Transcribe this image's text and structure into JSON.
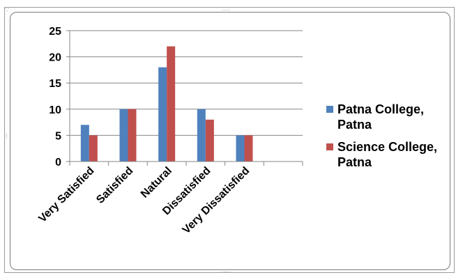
{
  "title": "",
  "chart_data": {
    "type": "bar",
    "title": "",
    "xlabel": "",
    "ylabel": "",
    "categories": [
      "Very Satisfied",
      "Satisfied",
      "Natural",
      "Dissatisfied",
      "Very Dissatisfied",
      ""
    ],
    "series": [
      {
        "name": "Patna College, Patna",
        "color": "#4f81bd",
        "values": [
          7,
          10,
          18,
          10,
          5,
          null
        ]
      },
      {
        "name": "Science College, Patna",
        "color": "#c0504d",
        "values": [
          5,
          10,
          22,
          8,
          5,
          null
        ]
      }
    ],
    "ylim": [
      0,
      25
    ],
    "yticks": [
      0,
      5,
      10,
      15,
      20,
      25
    ],
    "grid": true,
    "legend_position": "right"
  }
}
